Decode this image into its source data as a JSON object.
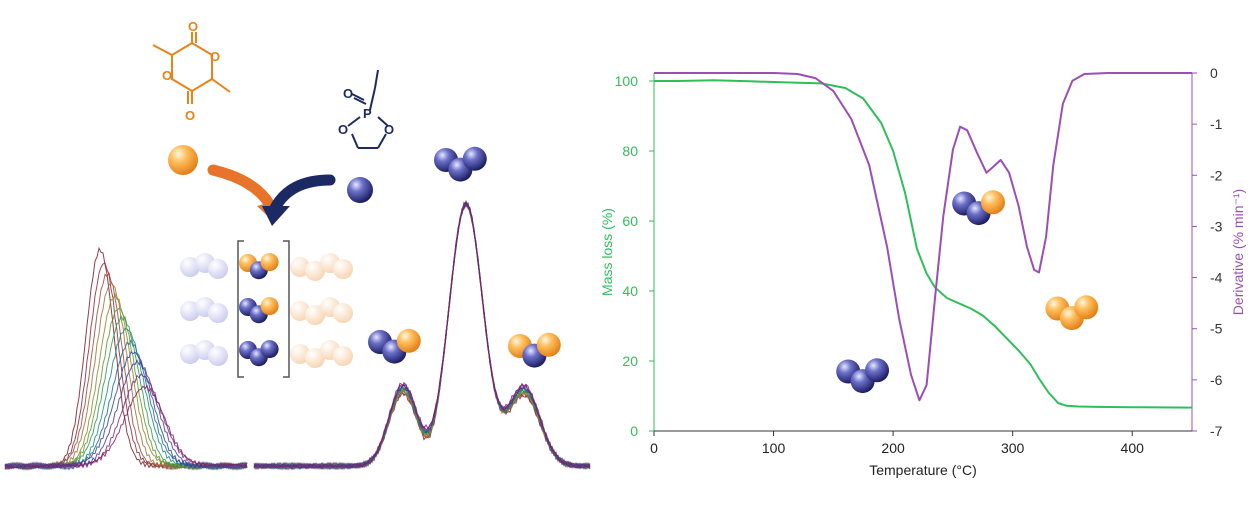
{
  "colors": {
    "mass_loss": "#2fbf5a",
    "derivative": "#9b4fb5",
    "lactide_monomer": "#e8831a",
    "phosphoester_monomer": "#1c2a63",
    "orange_bead": "#f39a2a",
    "blue_bead": "#2b2f7a"
  },
  "schematic": {
    "monomer_a": "lactide",
    "monomer_b": "ethyl-ethylene-phosphate",
    "atom_labels": {
      "oxygen": "O",
      "phosphorus": "P"
    },
    "bracket_rows": [
      "orange-blue-orange",
      "blue-blue-orange",
      "blue-blue-blue"
    ],
    "nmr_triad_icons": [
      "blue-blue-orange",
      "blue-blue-blue",
      "orange-blue-orange"
    ]
  },
  "chart_data": {
    "type": "line",
    "xlabel": "Temperature (°C)",
    "ylabel": "Mass loss (%)",
    "y2label": "Derivative (% min⁻¹)",
    "xlim": [
      0,
      450
    ],
    "ylim": [
      0,
      100
    ],
    "y2lim": [
      -7,
      0
    ],
    "xticks": [
      "0",
      "100",
      "200",
      "300",
      "400"
    ],
    "yticks": [
      "0",
      "20",
      "40",
      "60",
      "80",
      "100"
    ],
    "y2ticks": [
      "0",
      "-1",
      "-2",
      "-3",
      "-4",
      "-5",
      "-6",
      "-7"
    ],
    "grid": false,
    "legend": "none",
    "series": [
      {
        "axis": "left",
        "color": "#2fbf5a",
        "x": [
          0,
          20,
          50,
          80,
          110,
          140,
          160,
          175,
          190,
          200,
          210,
          220,
          228,
          235,
          245,
          255,
          265,
          275,
          285,
          295,
          305,
          315,
          322,
          330,
          338,
          345,
          355,
          370,
          400,
          450
        ],
        "y": [
          100,
          100,
          100.2,
          99.9,
          99.6,
          99.3,
          98,
          95,
          88,
          80,
          68,
          52,
          45,
          41,
          38,
          36.5,
          35,
          33,
          30,
          26.5,
          23,
          19,
          15,
          11,
          8,
          7.2,
          7,
          6.9,
          6.8,
          6.7
        ]
      },
      {
        "axis": "right",
        "color": "#9b4fb5",
        "x": [
          0,
          100,
          120,
          135,
          150,
          165,
          180,
          195,
          205,
          215,
          222,
          228,
          235,
          242,
          250,
          256,
          262,
          270,
          278,
          283,
          290,
          297,
          305,
          312,
          318,
          322,
          328,
          334,
          342,
          350,
          360,
          380,
          450
        ],
        "y": [
          0,
          0,
          -0.02,
          -0.1,
          -0.35,
          -0.9,
          -1.8,
          -3.4,
          -4.8,
          -5.9,
          -6.4,
          -6.1,
          -4.4,
          -2.8,
          -1.5,
          -1.05,
          -1.12,
          -1.55,
          -1.95,
          -1.85,
          -1.7,
          -1.95,
          -2.6,
          -3.4,
          -3.85,
          -3.9,
          -3.2,
          -1.8,
          -0.6,
          -0.15,
          -0.02,
          0,
          0
        ]
      }
    ],
    "annotations": [
      {
        "label": "blue-blue-blue",
        "x": 175,
        "y": 17
      },
      {
        "label": "blue-blue-orange",
        "x": 272,
        "y": 65
      },
      {
        "label": "orange-orange-orange",
        "x": 350,
        "y": 35
      }
    ]
  }
}
